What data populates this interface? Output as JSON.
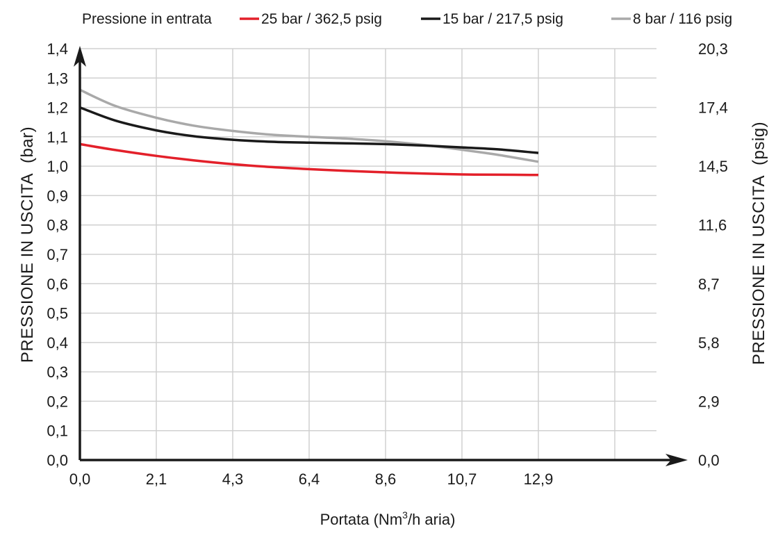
{
  "chart_data": {
    "type": "line",
    "legend": {
      "title": "Pressione in entrata",
      "placement": "top"
    },
    "xlabel": {
      "prefix": "Portata (Nm",
      "sup": "3",
      "suffix": "/h aria)"
    },
    "ylabel_left": {
      "main": "PRESSIONE IN USCITA",
      "unit": "(bar)"
    },
    "ylabel_right": {
      "main": "PRESSIONE IN USCITA",
      "unit": "(psig)"
    },
    "x_ticks": [
      "0,0",
      "2,1",
      "4,3",
      "6,4",
      "8,6",
      "10,7",
      "12,9"
    ],
    "x_tick_values": [
      0,
      2.15,
      4.3,
      6.45,
      8.6,
      10.75,
      12.9
    ],
    "xlim": [
      0,
      17.2
    ],
    "y_ticks": [
      "0,0",
      "0,1",
      "0,2",
      "0,3",
      "0,4",
      "0,5",
      "0,6",
      "0,7",
      "0,8",
      "0,9",
      "1,0",
      "1,1",
      "1,2",
      "1,3",
      "1,4"
    ],
    "y_tick_values": [
      0,
      0.1,
      0.2,
      0.3,
      0.4,
      0.5,
      0.6,
      0.7,
      0.8,
      0.9,
      1.0,
      1.1,
      1.2,
      1.3,
      1.4
    ],
    "ylim": [
      0,
      1.4
    ],
    "y_right_ticks": [
      "0,0",
      "2,9",
      "5,8",
      "8,7",
      "11,6",
      "14,5",
      "17,4",
      "20,3"
    ],
    "y_right_tick_values": [
      0,
      0.2,
      0.4,
      0.6,
      0.8,
      1.0,
      1.2,
      1.4
    ],
    "grid": true,
    "series": [
      {
        "name": "25 bar / 362,5 psig",
        "color": "#e3202a",
        "x": [
          0,
          1.0,
          2.15,
          3.2,
          4.3,
          5.4,
          6.45,
          7.5,
          8.6,
          9.7,
          10.75,
          11.8,
          12.9
        ],
        "y": [
          1.075,
          1.055,
          1.035,
          1.02,
          1.007,
          0.997,
          0.99,
          0.984,
          0.979,
          0.975,
          0.972,
          0.971,
          0.97
        ]
      },
      {
        "name": "15 bar / 217,5 psig",
        "color": "#1a1a1a",
        "x": [
          0,
          1.0,
          2.15,
          3.2,
          4.3,
          5.4,
          6.45,
          7.5,
          8.6,
          9.7,
          10.75,
          11.8,
          12.9
        ],
        "y": [
          1.2,
          1.155,
          1.122,
          1.102,
          1.09,
          1.083,
          1.08,
          1.078,
          1.075,
          1.07,
          1.064,
          1.057,
          1.045
        ]
      },
      {
        "name": "8 bar / 116 psig",
        "color": "#a9a9a9",
        "x": [
          0,
          1.0,
          2.15,
          3.2,
          4.3,
          5.4,
          6.45,
          7.5,
          8.6,
          9.7,
          10.75,
          11.8,
          12.9
        ],
        "y": [
          1.26,
          1.205,
          1.165,
          1.138,
          1.12,
          1.107,
          1.1,
          1.094,
          1.085,
          1.072,
          1.056,
          1.038,
          1.015
        ]
      }
    ]
  }
}
